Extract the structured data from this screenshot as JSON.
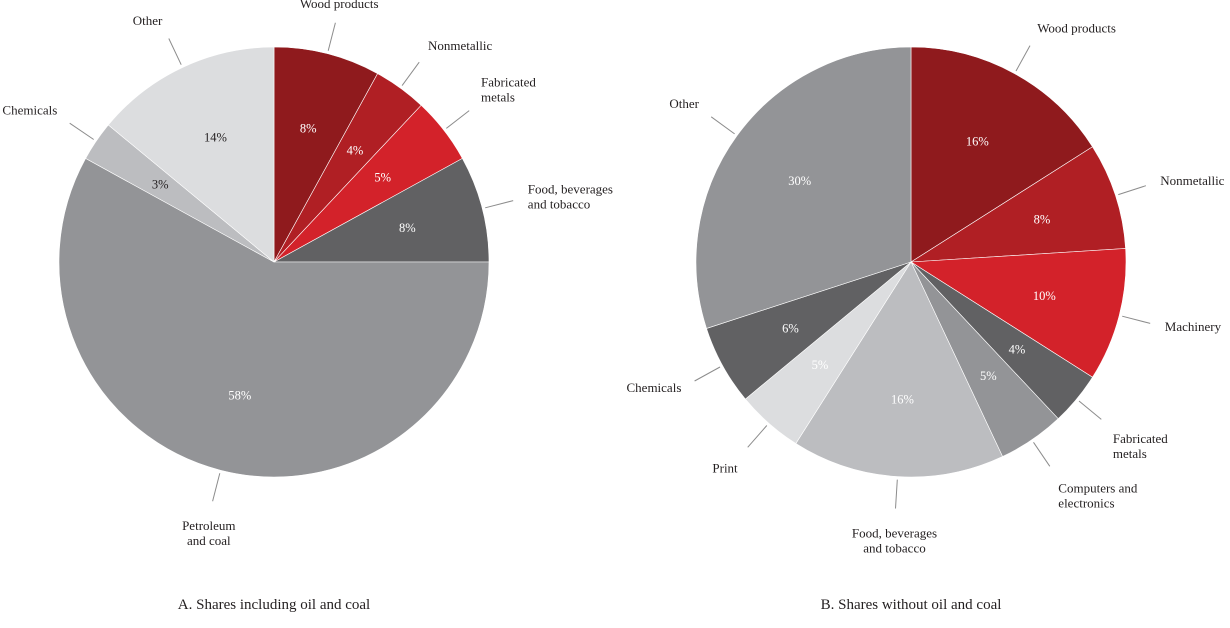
{
  "chart_data": [
    {
      "type": "pie",
      "title": "A. Shares including oil and coal",
      "slices": [
        {
          "label": "Wood products",
          "value": 8,
          "display": "8%",
          "color": "#8f1a1d"
        },
        {
          "label": "Nonmetallic",
          "value": 4,
          "display": "4%",
          "color": "#b01f24"
        },
        {
          "label": "Fabricated\nmetals",
          "value": 5,
          "display": "5%",
          "color": "#d3222a"
        },
        {
          "label": "Food, beverages\nand tobacco",
          "value": 8,
          "display": "8%",
          "color": "#616163"
        },
        {
          "label": "Petroleum\nand coal",
          "value": 58,
          "display": "58%",
          "color": "#939497"
        },
        {
          "label": "Chemicals",
          "value": 3,
          "display": "3%",
          "color": "#bcbdc0"
        },
        {
          "label": "Other",
          "value": 14,
          "display": "14%",
          "color": "#dcdddf"
        }
      ]
    },
    {
      "type": "pie",
      "title": "B. Shares without oil and coal",
      "slices": [
        {
          "label": "Wood products",
          "value": 16,
          "display": "16%",
          "color": "#8f1a1d"
        },
        {
          "label": "Nonmetallic",
          "value": 8,
          "display": "8%",
          "color": "#b01f24"
        },
        {
          "label": "Machinery",
          "value": 10,
          "display": "10%",
          "color": "#d3222a"
        },
        {
          "label": "Fabricated\nmetals",
          "value": 4,
          "display": "4%",
          "color": "#616163"
        },
        {
          "label": "Computers and\nelectronics",
          "value": 5,
          "display": "5%",
          "color": "#939497"
        },
        {
          "label": "Food, beverages\nand tobacco",
          "value": 16,
          "display": "16%",
          "color": "#bcbdc0"
        },
        {
          "label": "Print",
          "value": 5,
          "display": "5%",
          "color": "#dcdddf"
        },
        {
          "label": "Chemicals",
          "value": 6,
          "display": "6%",
          "color": "#616163"
        },
        {
          "label": "Other",
          "value": 30,
          "display": "30%",
          "color": "#939497"
        }
      ]
    }
  ]
}
